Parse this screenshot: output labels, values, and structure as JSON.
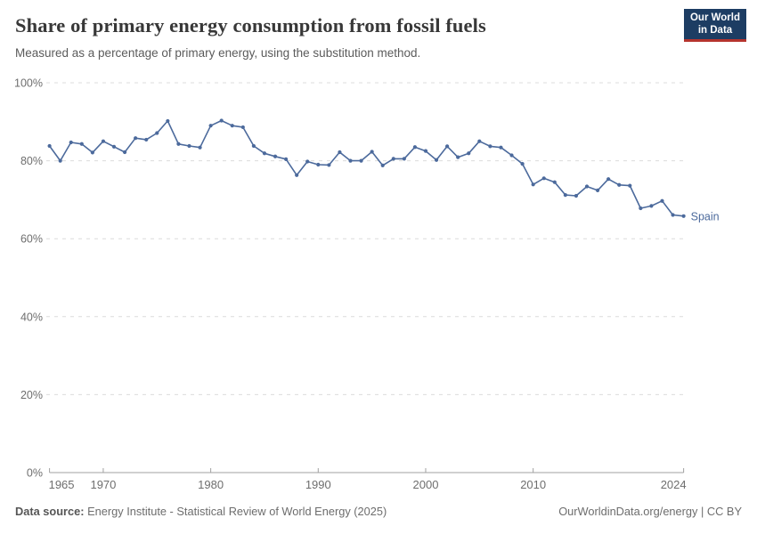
{
  "chart_data": {
    "type": "line",
    "title": "Share of primary energy consumption from fossil fuels",
    "subtitle": "Measured as a percentage of primary energy, using the substitution method.",
    "x": [
      1965,
      1966,
      1967,
      1968,
      1969,
      1970,
      1971,
      1972,
      1973,
      1974,
      1975,
      1976,
      1977,
      1978,
      1979,
      1980,
      1981,
      1982,
      1983,
      1984,
      1985,
      1986,
      1987,
      1988,
      1989,
      1990,
      1991,
      1992,
      1993,
      1994,
      1995,
      1996,
      1997,
      1998,
      1999,
      2000,
      2001,
      2002,
      2003,
      2004,
      2005,
      2006,
      2007,
      2008,
      2009,
      2010,
      2011,
      2012,
      2013,
      2014,
      2015,
      2016,
      2017,
      2018,
      2019,
      2020,
      2021,
      2022,
      2023,
      2024
    ],
    "series": [
      {
        "name": "Spain",
        "color": "#4C6A9C",
        "values": [
          83.8,
          80.0,
          84.7,
          84.3,
          82.1,
          85.0,
          83.6,
          82.2,
          85.8,
          85.4,
          87.1,
          90.2,
          84.3,
          83.8,
          83.4,
          89.0,
          90.3,
          89.0,
          88.6,
          83.8,
          81.9,
          81.1,
          80.4,
          76.3,
          79.8,
          79.0,
          78.9,
          82.2,
          80.0,
          80.0,
          82.3,
          78.8,
          80.5,
          80.5,
          83.5,
          82.5,
          80.2,
          83.7,
          80.9,
          81.9,
          85.0,
          83.7,
          83.4,
          81.4,
          79.2,
          73.9,
          75.5,
          74.5,
          71.2,
          71.0,
          73.4,
          72.4,
          75.3,
          73.8,
          73.6,
          67.8,
          68.4,
          69.7,
          66.1,
          65.8
        ]
      }
    ],
    "xlim": [
      1965,
      2024
    ],
    "ylim": [
      0,
      100
    ],
    "x_ticks": [
      1965,
      1970,
      1980,
      1990,
      2000,
      2010,
      2024
    ],
    "y_ticks": [
      0,
      20,
      40,
      60,
      80,
      100
    ],
    "y_tick_suffix": "%",
    "grid": "horizontal-dashed",
    "grid_color": "#dcdcdc",
    "axis_color": "#a1a1a1",
    "tick_label_color": "#6e6e6e",
    "legend": "end-of-line-label"
  },
  "logo": {
    "line1": "Our World",
    "line2": "in Data",
    "bg_color": "#1d3d63",
    "accent_color": "#b5342e"
  },
  "footer": {
    "source_label": "Data source:",
    "source_text": " Energy Institute - Statistical Review of World Energy (2025)",
    "right_url": "OurWorldinData.org/energy",
    "right_separator": " | ",
    "right_license": "CC BY"
  }
}
